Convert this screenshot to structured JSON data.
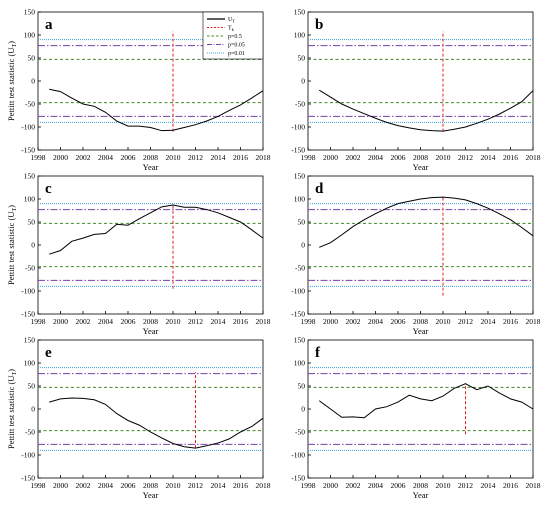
{
  "chart_data": [
    {
      "type": "line",
      "panel": "a",
      "xlabel": "Year",
      "ylabel": "Pettitt test statistic (U",
      "ylabel_sub": "T",
      "ylabel_close": ")",
      "xlim": [
        1998,
        2018
      ],
      "ylim": [
        -150,
        150
      ],
      "x_ticks": [
        1998,
        2000,
        2002,
        2004,
        2006,
        2008,
        2010,
        2012,
        2014,
        2016,
        2018
      ],
      "y_ticks": [
        -150,
        -100,
        -50,
        0,
        50,
        100,
        150
      ],
      "x": [
        1999,
        2000,
        2001,
        2002,
        2003,
        2004,
        2005,
        2006,
        2007,
        2008,
        2009,
        2010,
        2011,
        2012,
        2013,
        2014,
        2015,
        2016,
        2017,
        2018
      ],
      "series": [
        {
          "values": [
            -18,
            -23,
            -37,
            -50,
            -55,
            -68,
            -87,
            -98,
            -98,
            -101,
            -108,
            -107,
            -101,
            -95,
            -87,
            -77,
            -64,
            -52,
            -37,
            -21
          ]
        }
      ],
      "change_point": {
        "x": 2010,
        "y_range": [
          -110,
          108
        ]
      },
      "thresholds": {
        "p05": 47,
        "p005": 77,
        "p001": 90
      },
      "legend": {
        "ut_label": "U",
        "ut_sub": "T",
        "tk_label": "T",
        "tk_sub": "k",
        "p05": "p=0.5",
        "p005": "p=0.05",
        "p001": "p=0.01"
      }
    },
    {
      "type": "line",
      "panel": "b",
      "xlabel": "Year",
      "xlim": [
        1998,
        2018
      ],
      "ylim": [
        -150,
        150
      ],
      "x_ticks": [
        1998,
        2000,
        2002,
        2004,
        2006,
        2008,
        2010,
        2012,
        2014,
        2016,
        2018
      ],
      "y_ticks": [
        -150,
        -100,
        -50,
        0,
        50,
        100,
        150
      ],
      "x": [
        1999,
        2000,
        2001,
        2002,
        2003,
        2004,
        2005,
        2006,
        2007,
        2008,
        2009,
        2010,
        2011,
        2012,
        2013,
        2014,
        2015,
        2016,
        2017,
        2018
      ],
      "series": [
        {
          "values": [
            -20,
            -35,
            -50,
            -61,
            -71,
            -81,
            -90,
            -97,
            -102,
            -106,
            -108,
            -109,
            -105,
            -100,
            -92,
            -83,
            -72,
            -59,
            -45,
            -21
          ]
        }
      ],
      "change_point": {
        "x": 2010,
        "y_range": [
          -110,
          108
        ]
      },
      "thresholds": {
        "p05": 47,
        "p005": 77,
        "p001": 90
      }
    },
    {
      "type": "line",
      "panel": "c",
      "xlabel": "Year",
      "ylabel": "Pettitt test statistic (U",
      "ylabel_sub": "T",
      "ylabel_close": ")",
      "xlim": [
        1998,
        2018
      ],
      "ylim": [
        -150,
        150
      ],
      "x_ticks": [
        1998,
        2000,
        2002,
        2004,
        2006,
        2008,
        2010,
        2012,
        2014,
        2016,
        2018
      ],
      "y_ticks": [
        -150,
        -100,
        -50,
        0,
        50,
        100,
        150
      ],
      "x": [
        1999,
        2000,
        2001,
        2002,
        2003,
        2004,
        2005,
        2006,
        2007,
        2008,
        2009,
        2010,
        2011,
        2012,
        2013,
        2014,
        2015,
        2016,
        2017,
        2018
      ],
      "series": [
        {
          "values": [
            -20,
            -12,
            8,
            15,
            23,
            25,
            45,
            43,
            57,
            70,
            83,
            87,
            82,
            82,
            77,
            70,
            60,
            50,
            33,
            15
          ]
        }
      ],
      "change_point": {
        "x": 2010,
        "y_range": [
          -95,
          87
        ]
      },
      "thresholds": {
        "p05": 47,
        "p005": 77,
        "p001": 90
      }
    },
    {
      "type": "line",
      "panel": "d",
      "xlabel": "Year",
      "xlim": [
        1998,
        2018
      ],
      "ylim": [
        -150,
        150
      ],
      "x_ticks": [
        1998,
        2000,
        2002,
        2004,
        2006,
        2008,
        2010,
        2012,
        2014,
        2016,
        2018
      ],
      "y_ticks": [
        -150,
        -100,
        -50,
        0,
        50,
        100,
        150
      ],
      "x": [
        1999,
        2000,
        2001,
        2002,
        2003,
        2004,
        2005,
        2006,
        2007,
        2008,
        2009,
        2010,
        2011,
        2012,
        2013,
        2014,
        2015,
        2016,
        2017,
        2018
      ],
      "series": [
        {
          "values": [
            -5,
            5,
            22,
            40,
            55,
            68,
            80,
            90,
            95,
            100,
            103,
            104,
            102,
            98,
            90,
            80,
            68,
            55,
            38,
            20
          ]
        }
      ],
      "change_point": {
        "x": 2010,
        "y_range": [
          -110,
          104
        ]
      },
      "thresholds": {
        "p05": 47,
        "p005": 77,
        "p001": 90
      }
    },
    {
      "type": "line",
      "panel": "e",
      "xlabel": "Year",
      "ylabel": "Pettitt test statistic (U",
      "ylabel_sub": "T",
      "ylabel_close": ")",
      "xlim": [
        1998,
        2018
      ],
      "ylim": [
        -150,
        150
      ],
      "x_ticks": [
        1998,
        2000,
        2002,
        2004,
        2006,
        2008,
        2010,
        2012,
        2014,
        2016,
        2018
      ],
      "y_ticks": [
        -150,
        -100,
        -50,
        0,
        50,
        100,
        150
      ],
      "x": [
        1999,
        2000,
        2001,
        2002,
        2003,
        2004,
        2005,
        2006,
        2007,
        2008,
        2009,
        2010,
        2011,
        2012,
        2013,
        2014,
        2015,
        2016,
        2017,
        2018
      ],
      "series": [
        {
          "values": [
            15,
            22,
            24,
            23,
            20,
            10,
            -10,
            -25,
            -35,
            -50,
            -63,
            -75,
            -82,
            -85,
            -80,
            -74,
            -65,
            -50,
            -38,
            -20
          ]
        }
      ],
      "change_point": {
        "x": 2012,
        "y_range": [
          -85,
          80
        ]
      },
      "thresholds": {
        "p05": 47,
        "p005": 77,
        "p001": 90
      }
    },
    {
      "type": "line",
      "panel": "f",
      "xlabel": "Year",
      "xlim": [
        1998,
        2018
      ],
      "ylim": [
        -150,
        150
      ],
      "x_ticks": [
        1998,
        2000,
        2002,
        2004,
        2006,
        2008,
        2010,
        2012,
        2014,
        2016,
        2018
      ],
      "y_ticks": [
        -150,
        -100,
        -50,
        0,
        50,
        100,
        150
      ],
      "x": [
        1999,
        2000,
        2001,
        2002,
        2003,
        2004,
        2005,
        2006,
        2007,
        2008,
        2009,
        2010,
        2011,
        2012,
        2013,
        2014,
        2015,
        2016,
        2017,
        2018
      ],
      "series": [
        {
          "values": [
            18,
            0,
            -18,
            -17,
            -19,
            0,
            5,
            15,
            30,
            22,
            18,
            28,
            45,
            55,
            42,
            50,
            35,
            22,
            15,
            0
          ]
        }
      ],
      "change_point": {
        "x": 2012,
        "y_range": [
          -55,
          55
        ]
      },
      "thresholds": {
        "p05": 47,
        "p005": 77,
        "p001": 90
      }
    }
  ],
  "colors": {
    "series": "#000000",
    "change_point": "#e02020",
    "p05": "#3d8a2a",
    "p005": "#7b3fa6",
    "p001": "#3aa0e0"
  }
}
